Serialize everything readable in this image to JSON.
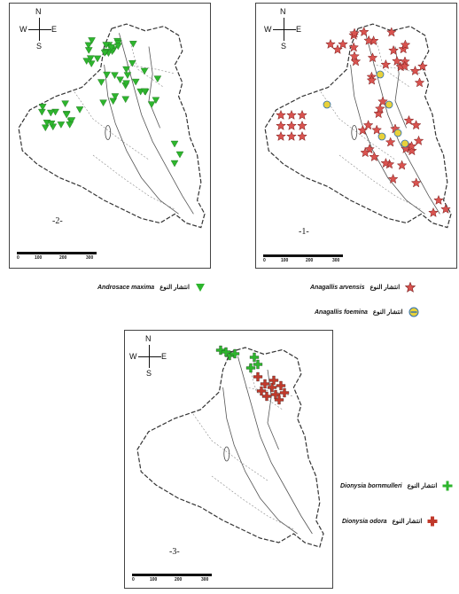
{
  "compass": {
    "n": "N",
    "s": "S",
    "w": "W",
    "e": "E"
  },
  "scale": {
    "ticks": [
      "0",
      "100",
      "200",
      "300"
    ]
  },
  "maps": [
    {
      "id": "1",
      "label": "-1-"
    },
    {
      "id": "2",
      "label": "-2-"
    },
    {
      "id": "3",
      "label": "-3-"
    }
  ],
  "legends": {
    "androsace": {
      "species": "Androsace maxima",
      "arabic": "انتشار النوع",
      "color": "#2db52d"
    },
    "anagallis_arvensis": {
      "species": "Anagallis arvensis",
      "arabic": "انتشار النوع",
      "color": "#d9534f"
    },
    "anagallis_foemina": {
      "species": "Anagallis foemina",
      "arabic": "انتشار النوع",
      "color": "#e8d13a"
    },
    "dionysia_bornmulleri": {
      "species": "Dionysia bornmulleri",
      "arabic": "انتشار النوع",
      "color": "#2db52d"
    },
    "dionysia_odora": {
      "species": "Dionysia odora",
      "arabic": "انتشار النوع",
      "color": "#c0392b"
    }
  },
  "colors": {
    "outline": "#333333",
    "border": "#444444"
  }
}
